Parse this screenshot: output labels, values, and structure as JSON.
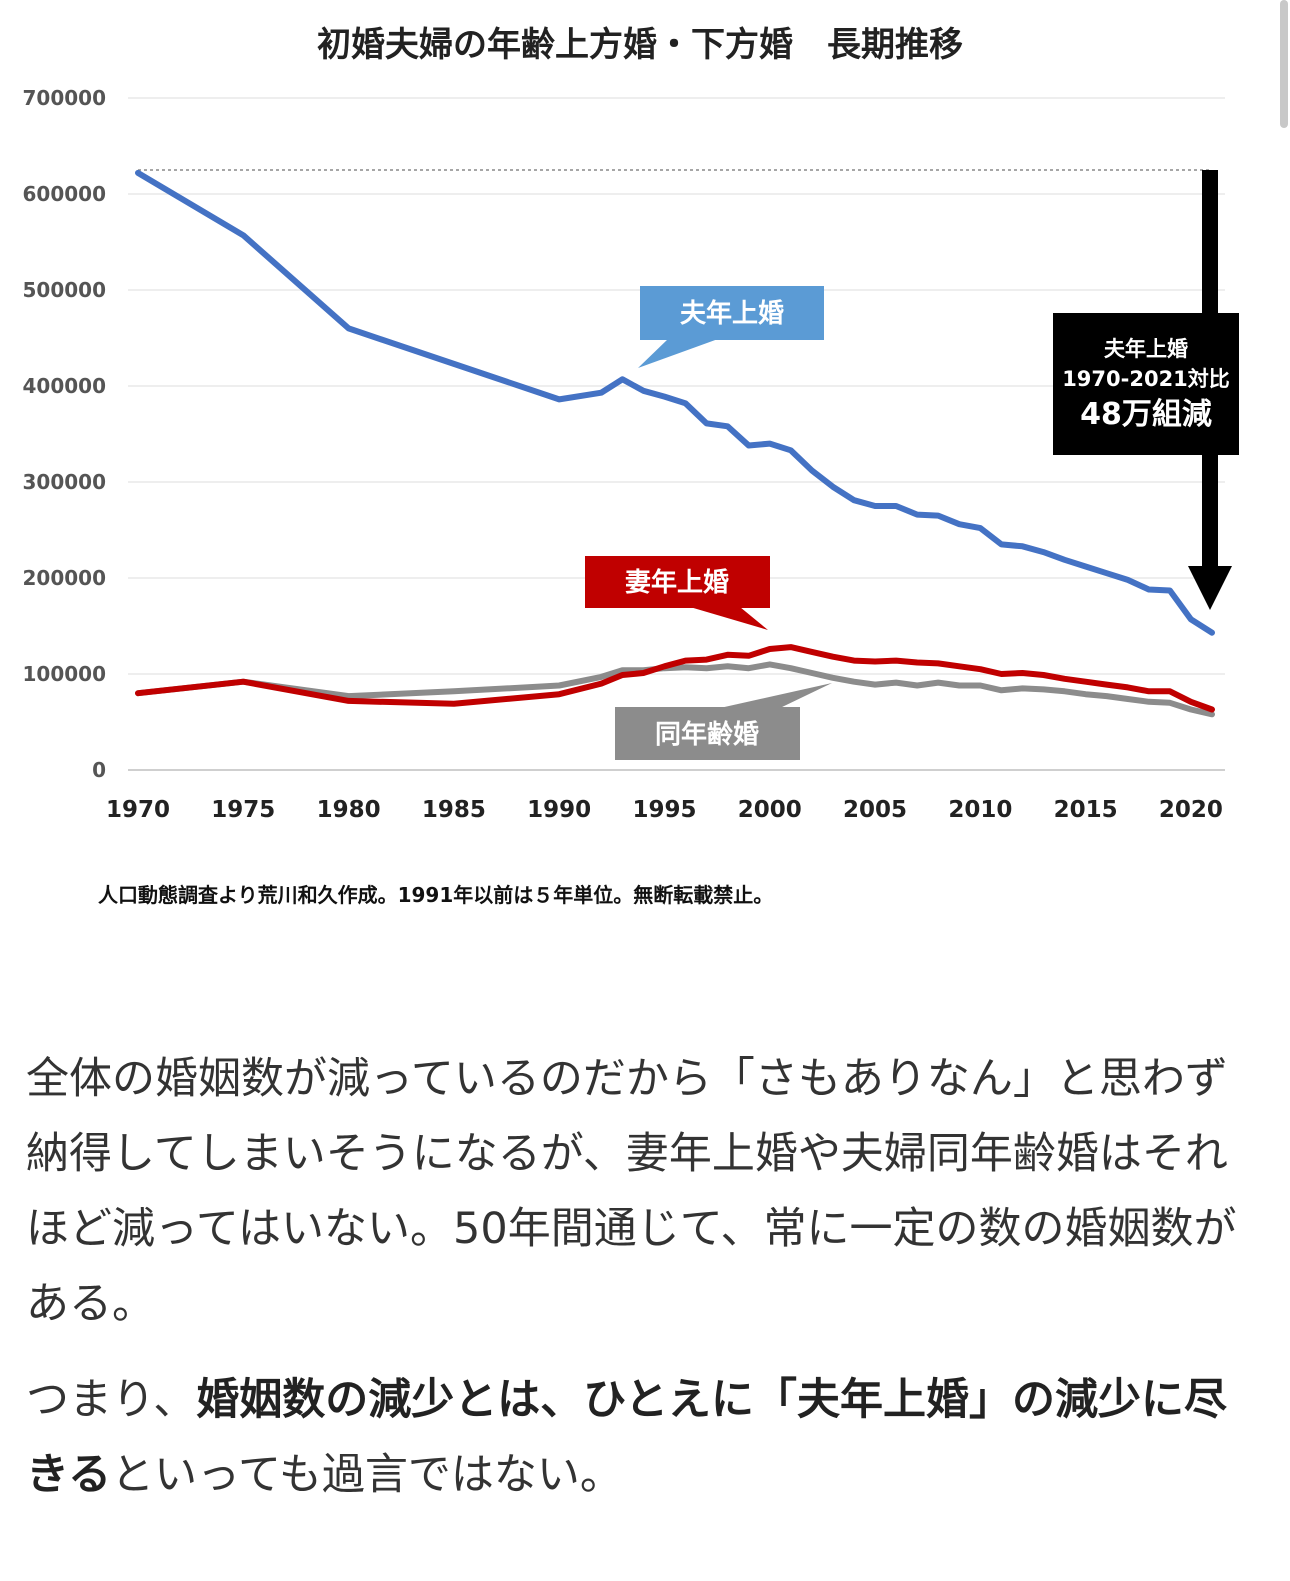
{
  "chart_data": {
    "type": "line",
    "title": "初婚夫婦の年齢上方婚・下方婚　長期推移",
    "ylim": [
      0,
      700000
    ],
    "yticks": [
      "0",
      "100000",
      "200000",
      "300000",
      "400000",
      "500000",
      "600000",
      "700000"
    ],
    "xlim": [
      1970,
      2021
    ],
    "xticks": [
      "1970",
      "1975",
      "1980",
      "1985",
      "1990",
      "1995",
      "2000",
      "2005",
      "2010",
      "2015",
      "2020"
    ],
    "grid": true,
    "series": [
      {
        "name": "夫年上婚",
        "color": "#4472c4",
        "x": [
          1970,
          1975,
          1980,
          1985,
          1990,
          1992,
          1993,
          1994,
          1995,
          1996,
          1997,
          1998,
          1999,
          2000,
          2001,
          2002,
          2003,
          2004,
          2005,
          2006,
          2007,
          2008,
          2009,
          2010,
          2011,
          2012,
          2013,
          2014,
          2015,
          2016,
          2017,
          2018,
          2019,
          2020,
          2021
        ],
        "y": [
          622000,
          557000,
          460000,
          423000,
          386000,
          393000,
          407000,
          395000,
          389000,
          382000,
          361000,
          358000,
          338000,
          340000,
          333000,
          312000,
          295000,
          281000,
          275000,
          275000,
          266000,
          265000,
          256000,
          252000,
          235000,
          233000,
          227000,
          219000,
          212000,
          205000,
          198000,
          188000,
          187000,
          157000,
          143000
        ]
      },
      {
        "name": "妻年上婚",
        "color": "#c00000",
        "x": [
          1970,
          1975,
          1980,
          1985,
          1990,
          1992,
          1993,
          1994,
          1995,
          1996,
          1997,
          1998,
          1999,
          2000,
          2001,
          2002,
          2003,
          2004,
          2005,
          2006,
          2007,
          2008,
          2009,
          2010,
          2011,
          2012,
          2013,
          2014,
          2015,
          2016,
          2017,
          2018,
          2019,
          2020,
          2021
        ],
        "y": [
          80000,
          92000,
          72000,
          69000,
          79000,
          90000,
          99000,
          101000,
          108000,
          114000,
          115000,
          120000,
          119000,
          126000,
          128000,
          123000,
          118000,
          114000,
          113000,
          114000,
          112000,
          111000,
          108000,
          105000,
          100000,
          101000,
          99000,
          95000,
          92000,
          89000,
          86000,
          82000,
          82000,
          71000,
          63000
        ]
      },
      {
        "name": "同年齢婚",
        "color": "#8c8c8c",
        "x": [
          1970,
          1975,
          1980,
          1985,
          1990,
          1992,
          1993,
          1994,
          1995,
          1996,
          1997,
          1998,
          1999,
          2000,
          2001,
          2002,
          2003,
          2004,
          2005,
          2006,
          2007,
          2008,
          2009,
          2010,
          2011,
          2012,
          2013,
          2014,
          2015,
          2016,
          2017,
          2018,
          2019,
          2020,
          2021
        ],
        "y": [
          80000,
          92000,
          77000,
          82000,
          88000,
          97000,
          104000,
          104000,
          106000,
          107000,
          106000,
          108000,
          106000,
          110000,
          106000,
          101000,
          96000,
          92000,
          89000,
          91000,
          88000,
          91000,
          88000,
          88000,
          83000,
          85000,
          84000,
          82000,
          79000,
          77000,
          74000,
          71000,
          70000,
          63000,
          58000
        ]
      }
    ],
    "annotations": {
      "callout_husband_older": "夫年上婚",
      "callout_wife_older": "妻年上婚",
      "callout_same_age": "同年齢婚",
      "box_line1": "夫年上婚",
      "box_line2": "1970-2021対比",
      "box_line3": "48万組減"
    },
    "source_note": "人口動態調査より荒川和久作成。1991年以前は５年単位。無断転載禁止。"
  },
  "article": {
    "para1": "全体の婚姻数が減っているのだから「さもありなん」と思わず納得してしまいそうになるが、妻年上婚や夫婦同年齢婚はそれほど減ってはいない。50年間通じて、常に一定の数の婚姻数がある。",
    "para2_lead": "つまり、",
    "para2_bold": "婚姻数の減少とは、ひとえに「夫年上婚」の減少に尽きる",
    "para2_tail": "といっても過言ではない。"
  }
}
